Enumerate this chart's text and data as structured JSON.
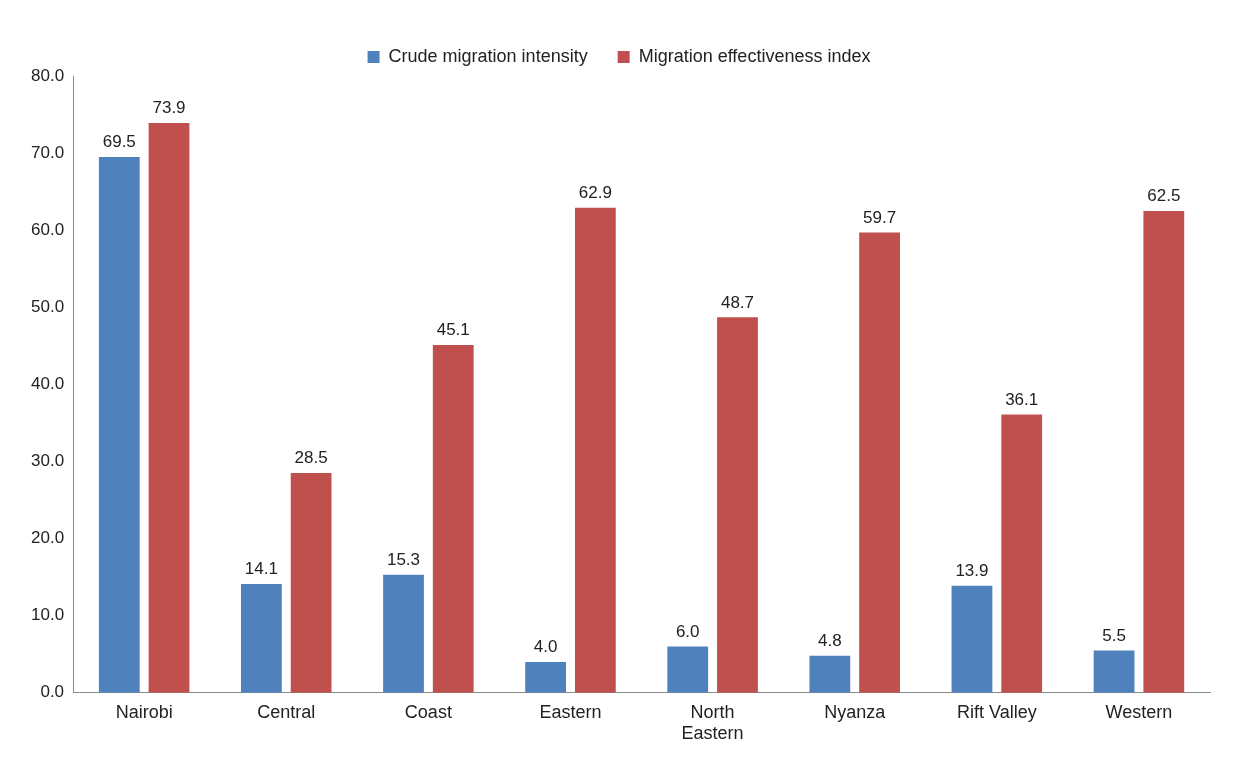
{
  "chart_data": {
    "type": "bar",
    "categories": [
      "Nairobi",
      "Central",
      "Coast",
      "Eastern",
      "North Eastern",
      "Nyanza",
      "Rift Valley",
      "Western"
    ],
    "series": [
      {
        "name": "Crude migration intensity",
        "color": "#4f81bd",
        "values": [
          69.5,
          14.1,
          15.3,
          4,
          6,
          4.8,
          13.9,
          5.5
        ],
        "value_labels": [
          "69.5",
          "14.1",
          "15.3",
          "4.0",
          "6.0",
          "4.8",
          "13.9",
          "5.5"
        ]
      },
      {
        "name": "Migration effectiveness index",
        "color": "#c0504d",
        "values": [
          73.9,
          28.5,
          45.1,
          62.9,
          48.7,
          59.7,
          36.1,
          62.5
        ],
        "value_labels": [
          "73.9",
          "28.5",
          "45.1",
          "62.9",
          "48.7",
          "59.7",
          "36.1",
          "62.5"
        ]
      }
    ],
    "ylim": [
      0,
      80
    ],
    "yticks": [
      {
        "value": 0,
        "label": "0.0"
      },
      {
        "value": 10,
        "label": "10.0"
      },
      {
        "value": 20,
        "label": "20.0"
      },
      {
        "value": 30,
        "label": "30.0"
      },
      {
        "value": 40,
        "label": "40.0"
      },
      {
        "value": 50,
        "label": "50.0"
      },
      {
        "value": 60,
        "label": "60.0"
      },
      {
        "value": 70,
        "label": "70.0"
      },
      {
        "value": 80,
        "label": "80.0"
      }
    ],
    "grid": false,
    "legend": "top"
  }
}
